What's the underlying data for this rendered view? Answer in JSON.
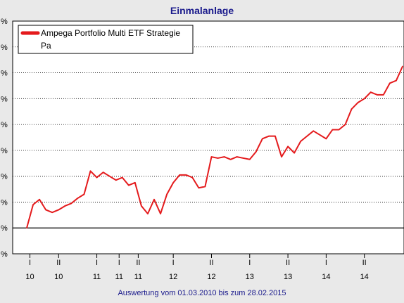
{
  "colors": {
    "background": "#e9e9e9",
    "plot_background": "#ffffff",
    "series": "#e41a1c",
    "title": "#1a1a8c",
    "grid": "#000000"
  },
  "chart_data": {
    "type": "line",
    "title": "Einmalanlage",
    "footer": "Auswertung vom 01.03.2010 bis zum 28.02.2015",
    "xlabel": "",
    "ylabel": "",
    "grid": true,
    "legend_position": "top-left",
    "y_tick_labels": [
      "%",
      "%",
      "%",
      "%",
      "%",
      "%",
      "%",
      "%",
      "%",
      "%"
    ],
    "x_ticks": [
      {
        "top": "I",
        "bottom": "10",
        "x": 0.5
      },
      {
        "top": "II",
        "bottom": "10",
        "x": 5
      },
      {
        "top": "I",
        "bottom": "11",
        "x": 11
      },
      {
        "top": "I",
        "bottom": "11",
        "x": 14.5
      },
      {
        "top": "II",
        "bottom": "11",
        "x": 17.5
      },
      {
        "top": "I",
        "bottom": "12",
        "x": 23
      },
      {
        "top": "II",
        "bottom": "12",
        "x": 29
      },
      {
        "top": "I",
        "bottom": "13",
        "x": 35
      },
      {
        "top": "II",
        "bottom": "13",
        "x": 41
      },
      {
        "top": "I",
        "bottom": "14",
        "x": 47
      },
      {
        "top": "II",
        "bottom": "14",
        "x": 53
      }
    ],
    "ylim": [
      -1,
      8
    ],
    "xlim": [
      0,
      59
    ],
    "series": [
      {
        "name": "Ampega Portfolio Multi ETF Strategie Pa",
        "x": [
          0,
          1,
          2,
          3,
          4,
          5,
          6,
          7,
          8,
          9,
          10,
          11,
          12,
          13,
          14,
          15,
          16,
          17,
          18,
          19,
          20,
          21,
          22,
          23,
          24,
          25,
          26,
          27,
          28,
          29,
          30,
          31,
          32,
          33,
          34,
          35,
          36,
          37,
          38,
          39,
          40,
          41,
          42,
          43,
          44,
          45,
          46,
          47,
          48,
          49,
          50,
          51,
          52,
          53,
          54,
          55,
          56,
          57,
          58,
          59
        ],
        "values": [
          0.0,
          0.9,
          1.1,
          0.7,
          0.6,
          0.7,
          0.85,
          0.95,
          1.15,
          1.3,
          2.2,
          1.95,
          2.15,
          2.0,
          1.85,
          1.95,
          1.65,
          1.75,
          0.85,
          0.55,
          1.1,
          0.55,
          1.3,
          1.75,
          2.05,
          2.05,
          1.95,
          1.55,
          1.6,
          2.75,
          2.7,
          2.75,
          2.65,
          2.75,
          2.7,
          2.65,
          2.95,
          3.45,
          3.55,
          3.55,
          2.75,
          3.15,
          2.9,
          3.35,
          3.55,
          3.75,
          3.6,
          3.45,
          3.8,
          3.8,
          4.0,
          4.6,
          4.85,
          5.0,
          5.25,
          5.15,
          5.15,
          5.6,
          5.7,
          6.25
        ]
      }
    ]
  }
}
